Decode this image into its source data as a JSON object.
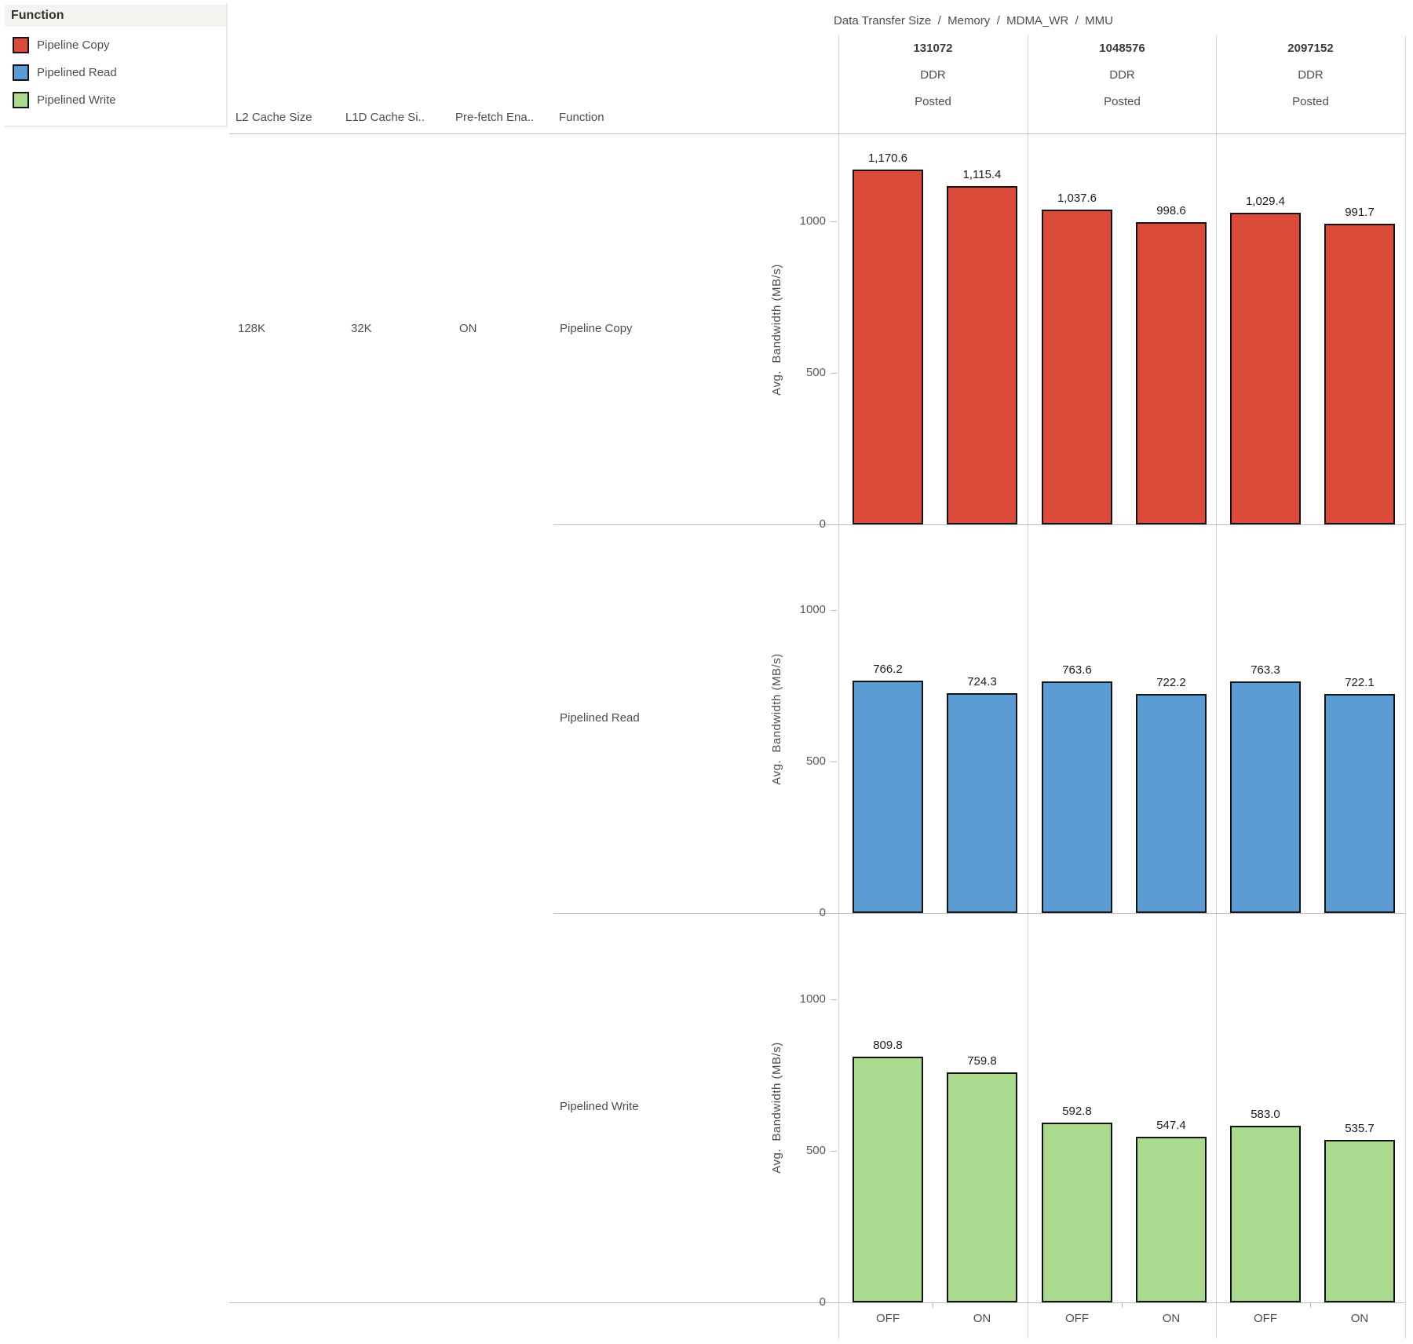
{
  "legend": {
    "title": "Function",
    "items": [
      {
        "label": "Pipeline Copy",
        "color": "#dc4b3a"
      },
      {
        "label": "Pipelined Read",
        "color": "#5b9cd5"
      },
      {
        "label": "Pipelined Write",
        "color": "#a9da8d"
      }
    ]
  },
  "row_headers": {
    "columns": [
      "L2 Cache Size",
      "L1D Cache Si..",
      "Pre-fetch Ena..",
      "Function"
    ],
    "values": [
      "128K",
      "32K",
      "ON"
    ]
  },
  "axis": {
    "x_categories": [
      "OFF",
      "ON"
    ]
  },
  "chart_data": {
    "type": "bar",
    "title": "Data Transfer Size  /  Memory  /  MDMA_WR  /  MMU",
    "ylabel": "Avg.  Bandwidth (MB/s)",
    "yticks": [
      "0",
      "500",
      "1000"
    ],
    "ytick_values": [
      0,
      500,
      1000
    ],
    "ylim": [
      0,
      1287
    ],
    "grid": "column-dividers-only",
    "legend_position": "top-left",
    "categories": [
      "OFF",
      "ON"
    ],
    "facet_columns": [
      {
        "data_transfer_size": "131072",
        "memory": "DDR",
        "mdma_wr": "Posted"
      },
      {
        "data_transfer_size": "1048576",
        "memory": "DDR",
        "mdma_wr": "Posted"
      },
      {
        "data_transfer_size": "2097152",
        "memory": "DDR",
        "mdma_wr": "Posted"
      }
    ],
    "facet_rows": [
      {
        "function": "Pipeline Copy",
        "color": "#dc4b3a",
        "series": [
          {
            "facet": "131072",
            "values": [
              1170.6,
              1115.4
            ],
            "labels": [
              "1,170.6",
              "1,115.4"
            ]
          },
          {
            "facet": "1048576",
            "values": [
              1037.6,
              998.6
            ],
            "labels": [
              "1,037.6",
              "998.6"
            ]
          },
          {
            "facet": "2097152",
            "values": [
              1029.4,
              991.7
            ],
            "labels": [
              "1,029.4",
              "991.7"
            ]
          }
        ]
      },
      {
        "function": "Pipelined Read",
        "color": "#5b9cd5",
        "series": [
          {
            "facet": "131072",
            "values": [
              766.2,
              724.3
            ],
            "labels": [
              "766.2",
              "724.3"
            ]
          },
          {
            "facet": "1048576",
            "values": [
              763.6,
              722.2
            ],
            "labels": [
              "763.6",
              "722.2"
            ]
          },
          {
            "facet": "2097152",
            "values": [
              763.3,
              722.1
            ],
            "labels": [
              "763.3",
              "722.1"
            ]
          }
        ]
      },
      {
        "function": "Pipelined Write",
        "color": "#a9da8d",
        "series": [
          {
            "facet": "131072",
            "values": [
              809.8,
              759.8
            ],
            "labels": [
              "809.8",
              "759.8"
            ]
          },
          {
            "facet": "1048576",
            "values": [
              592.8,
              547.4
            ],
            "labels": [
              "592.8",
              "547.4"
            ]
          },
          {
            "facet": "2097152",
            "values": [
              583.0,
              535.7
            ],
            "labels": [
              "583.0",
              "535.7"
            ]
          }
        ]
      }
    ]
  }
}
